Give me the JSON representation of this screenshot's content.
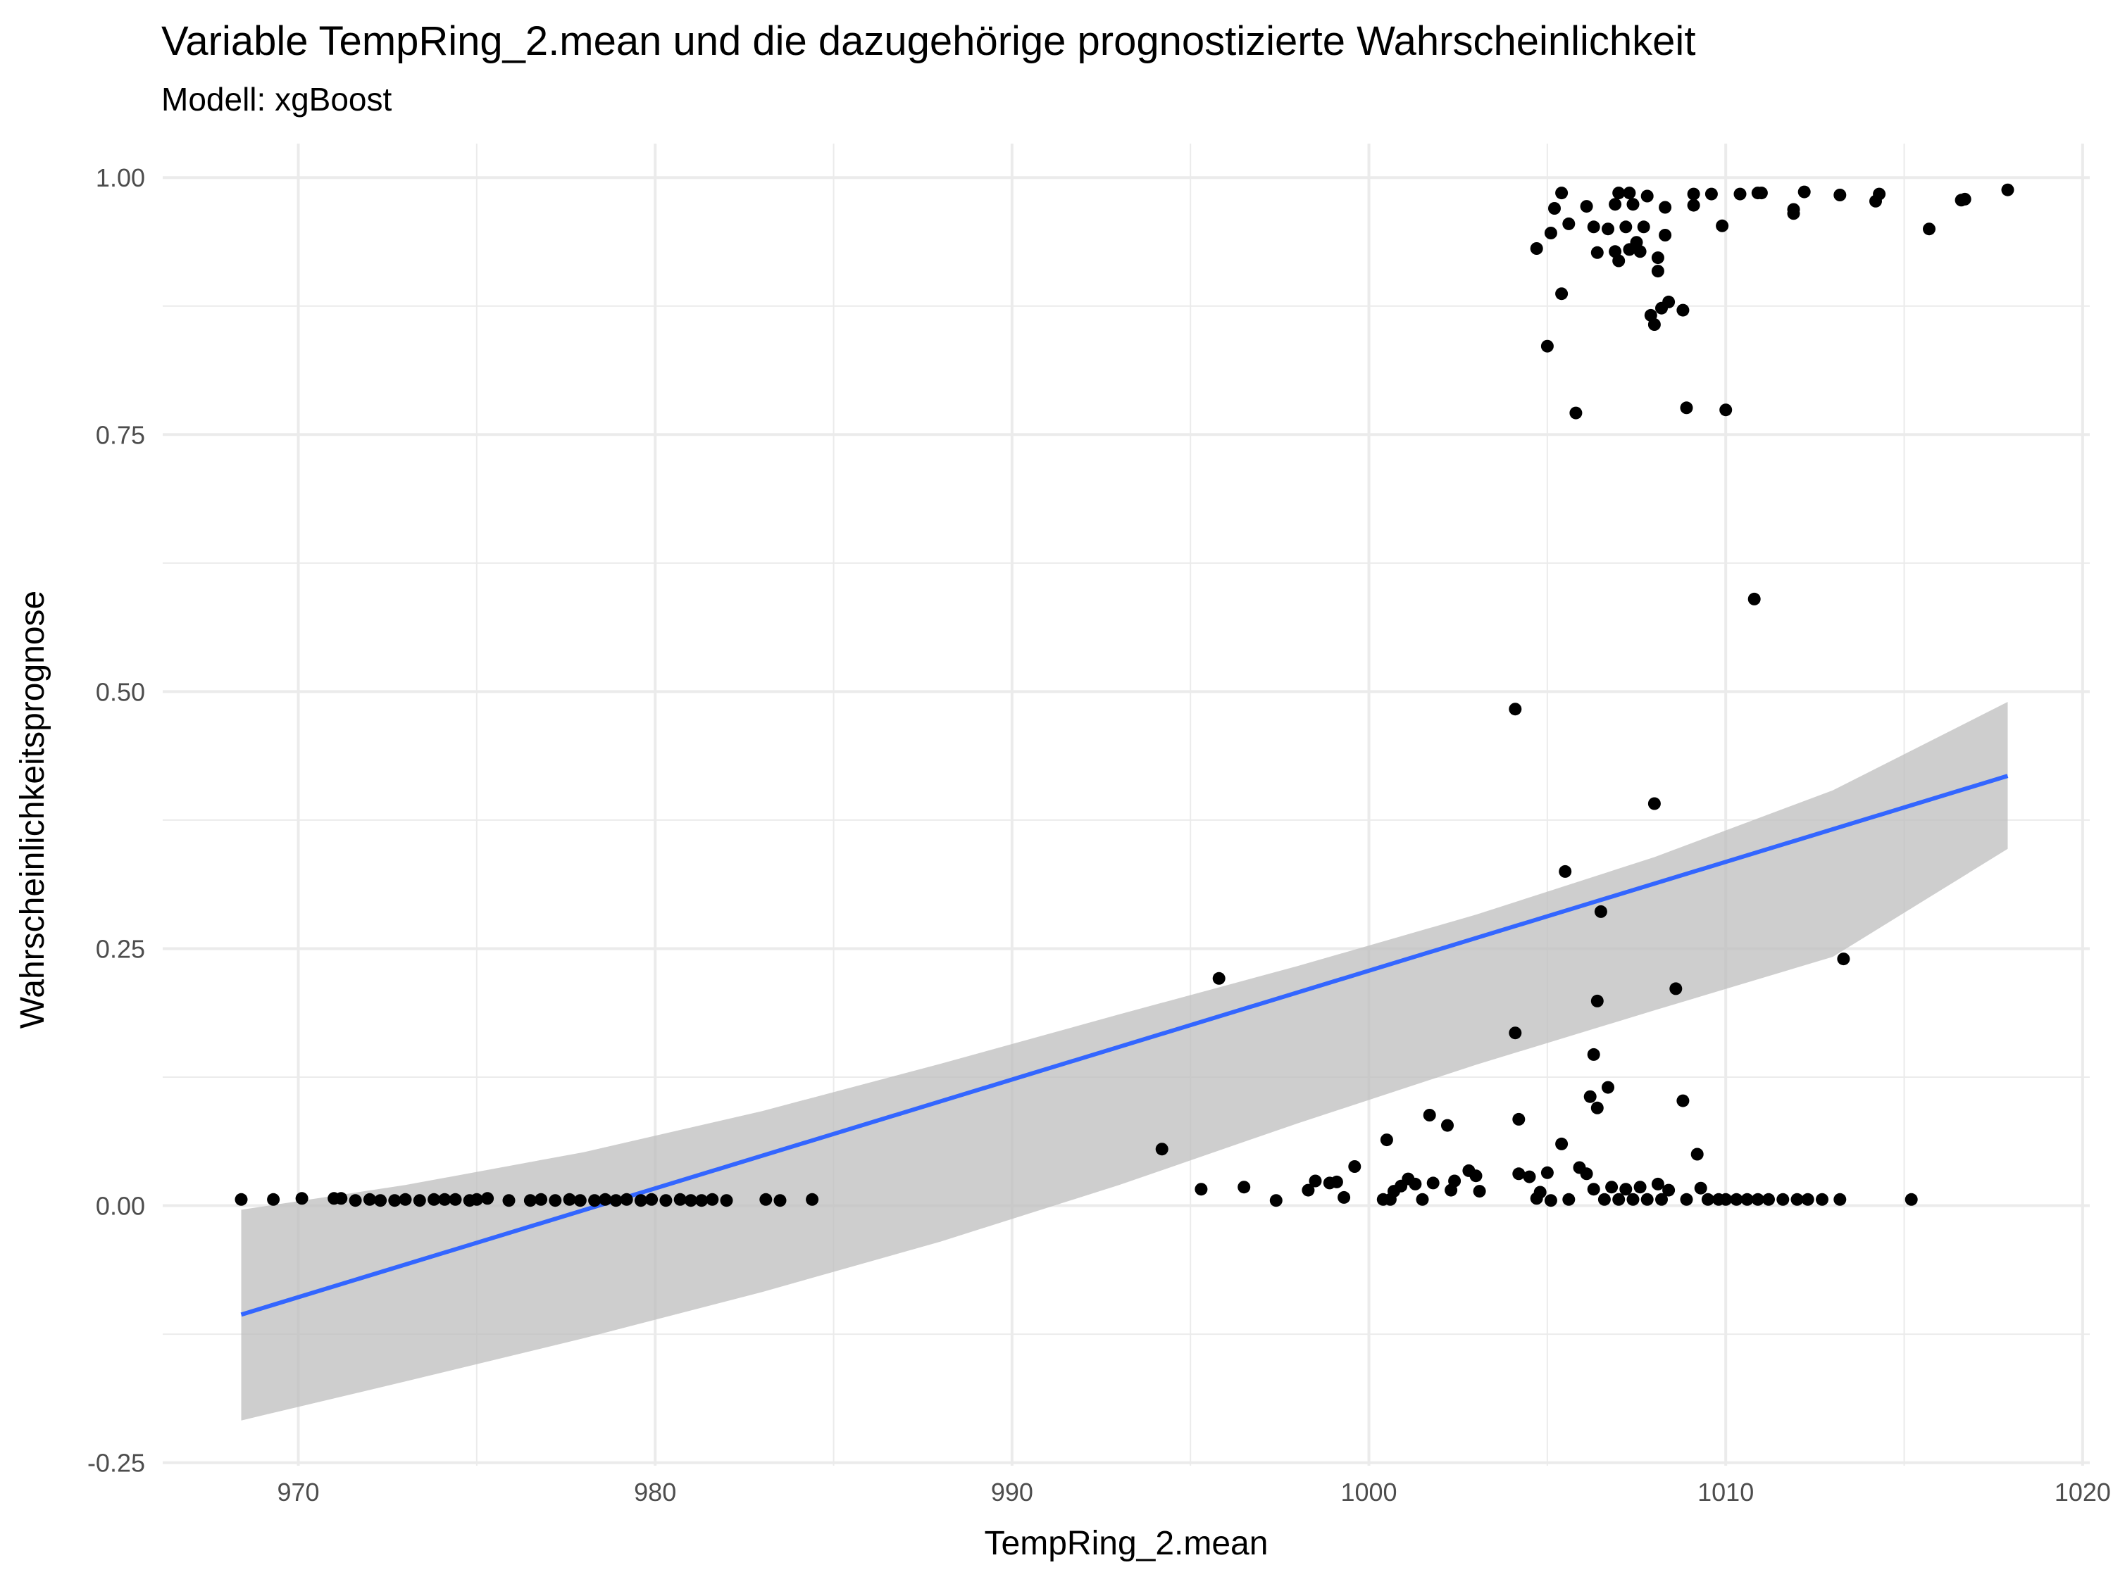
{
  "chart_data": {
    "type": "scatter",
    "title": "Variable TempRing_2.mean und die dazugehörige prognostizierte Wahrscheinlichkeit",
    "subtitle": "Modell: xgBoost",
    "xlabel": "TempRing_2.mean",
    "ylabel": "Wahrscheinlichkeitsprognose",
    "xlim": [
      966.2,
      1020.2
    ],
    "ylim": [
      -0.253,
      1.033
    ],
    "x_ticks": [
      970,
      980,
      990,
      1000,
      1010,
      1020
    ],
    "x_tick_labels": [
      "970",
      "980",
      "990",
      "1000",
      "1010",
      "1020"
    ],
    "y_ticks": [
      -0.25,
      0,
      0.25,
      0.5,
      0.75,
      1.0
    ],
    "y_tick_labels": [
      "-0.25",
      "0.00",
      "0.25",
      "0.50",
      "0.75",
      "1.00"
    ],
    "grid": true,
    "legend": "none",
    "colors": {
      "points": "#000000",
      "trend_line": "#3366FF",
      "confidence_band": "#bebebe",
      "grid": "#ebebeb"
    },
    "series": [
      {
        "type": "scatter",
        "points": [
          [
            968.4,
            0.006
          ],
          [
            969.3,
            0.006
          ],
          [
            970.1,
            0.007
          ],
          [
            971.0,
            0.007
          ],
          [
            971.2,
            0.007
          ],
          [
            971.6,
            0.005
          ],
          [
            972.0,
            0.006
          ],
          [
            972.3,
            0.005
          ],
          [
            972.7,
            0.005
          ],
          [
            973.0,
            0.006
          ],
          [
            973.4,
            0.005
          ],
          [
            973.8,
            0.006
          ],
          [
            974.1,
            0.006
          ],
          [
            974.4,
            0.006
          ],
          [
            974.8,
            0.005
          ],
          [
            975.0,
            0.006
          ],
          [
            975.3,
            0.007
          ],
          [
            975.9,
            0.005
          ],
          [
            976.5,
            0.005
          ],
          [
            976.8,
            0.006
          ],
          [
            977.2,
            0.005
          ],
          [
            977.6,
            0.006
          ],
          [
            977.9,
            0.005
          ],
          [
            978.3,
            0.005
          ],
          [
            978.6,
            0.006
          ],
          [
            978.9,
            0.005
          ],
          [
            979.2,
            0.006
          ],
          [
            979.6,
            0.005
          ],
          [
            979.9,
            0.006
          ],
          [
            980.3,
            0.005
          ],
          [
            980.7,
            0.006
          ],
          [
            981.0,
            0.005
          ],
          [
            981.3,
            0.005
          ],
          [
            981.6,
            0.006
          ],
          [
            982.0,
            0.005
          ],
          [
            983.1,
            0.006
          ],
          [
            983.5,
            0.005
          ],
          [
            984.4,
            0.006
          ],
          [
            994.2,
            0.055
          ],
          [
            995.3,
            0.016
          ],
          [
            995.8,
            0.221
          ],
          [
            996.5,
            0.018
          ],
          [
            997.4,
            0.005
          ],
          [
            998.3,
            0.015
          ],
          [
            998.5,
            0.024
          ],
          [
            998.9,
            0.022
          ],
          [
            999.1,
            0.023
          ],
          [
            999.3,
            0.008
          ],
          [
            999.6,
            0.038
          ],
          [
            1000.4,
            0.006
          ],
          [
            1000.5,
            0.064
          ],
          [
            1000.6,
            0.006
          ],
          [
            1000.7,
            0.014
          ],
          [
            1000.9,
            0.019
          ],
          [
            1001.1,
            0.026
          ],
          [
            1001.3,
            0.021
          ],
          [
            1001.5,
            0.006
          ],
          [
            1001.7,
            0.088
          ],
          [
            1001.8,
            0.022
          ],
          [
            1002.2,
            0.078
          ],
          [
            1002.3,
            0.015
          ],
          [
            1002.4,
            0.024
          ],
          [
            1002.8,
            0.034
          ],
          [
            1003.0,
            0.029
          ],
          [
            1003.1,
            0.014
          ],
          [
            1004.1,
            0.483
          ],
          [
            1004.1,
            0.168
          ],
          [
            1004.2,
            0.084
          ],
          [
            1004.2,
            0.031
          ],
          [
            1004.5,
            0.028
          ],
          [
            1004.7,
            0.007
          ],
          [
            1004.8,
            0.013
          ],
          [
            1005.0,
            0.032
          ],
          [
            1005.1,
            0.005
          ],
          [
            1005.4,
            0.06
          ],
          [
            1005.5,
            0.325
          ],
          [
            1005.6,
            0.006
          ],
          [
            1005.9,
            0.037
          ],
          [
            1006.1,
            0.031
          ],
          [
            1006.2,
            0.106
          ],
          [
            1006.3,
            0.147
          ],
          [
            1006.3,
            0.016
          ],
          [
            1006.4,
            0.095
          ],
          [
            1006.4,
            0.199
          ],
          [
            1006.5,
            0.286
          ],
          [
            1006.6,
            0.006
          ],
          [
            1006.7,
            0.115
          ],
          [
            1006.8,
            0.018
          ],
          [
            1007.0,
            0.006
          ],
          [
            1007.2,
            0.016
          ],
          [
            1007.4,
            0.006
          ],
          [
            1007.6,
            0.018
          ],
          [
            1007.8,
            0.006
          ],
          [
            1008.0,
            0.391
          ],
          [
            1008.1,
            0.021
          ],
          [
            1008.2,
            0.006
          ],
          [
            1008.4,
            0.015
          ],
          [
            1008.6,
            0.211
          ],
          [
            1008.8,
            0.102
          ],
          [
            1008.9,
            0.006
          ],
          [
            1009.2,
            0.05
          ],
          [
            1009.3,
            0.017
          ],
          [
            1009.5,
            0.006
          ],
          [
            1009.8,
            0.006
          ],
          [
            1010.0,
            0.006
          ],
          [
            1010.3,
            0.006
          ],
          [
            1010.6,
            0.006
          ],
          [
            1010.9,
            0.006
          ],
          [
            1011.2,
            0.006
          ],
          [
            1011.6,
            0.006
          ],
          [
            1012.0,
            0.006
          ],
          [
            1012.3,
            0.006
          ],
          [
            1012.7,
            0.006
          ],
          [
            1013.2,
            0.006
          ],
          [
            1015.2,
            0.006
          ],
          [
            1004.7,
            0.931
          ],
          [
            1005.0,
            0.836
          ],
          [
            1005.1,
            0.946
          ],
          [
            1005.2,
            0.97
          ],
          [
            1005.4,
            0.985
          ],
          [
            1005.4,
            0.887
          ],
          [
            1005.6,
            0.955
          ],
          [
            1005.8,
            0.771
          ],
          [
            1006.1,
            0.972
          ],
          [
            1006.3,
            0.952
          ],
          [
            1006.4,
            0.927
          ],
          [
            1006.7,
            0.95
          ],
          [
            1006.9,
            0.974
          ],
          [
            1006.9,
            0.928
          ],
          [
            1007.0,
            0.919
          ],
          [
            1007.0,
            0.985
          ],
          [
            1007.2,
            0.952
          ],
          [
            1007.3,
            0.985
          ],
          [
            1007.3,
            0.93
          ],
          [
            1007.4,
            0.974
          ],
          [
            1007.5,
            0.937
          ],
          [
            1007.6,
            0.928
          ],
          [
            1007.7,
            0.952
          ],
          [
            1007.8,
            0.982
          ],
          [
            1007.9,
            0.866
          ],
          [
            1008.0,
            0.857
          ],
          [
            1008.1,
            0.922
          ],
          [
            1008.1,
            0.909
          ],
          [
            1008.2,
            0.873
          ],
          [
            1008.3,
            0.971
          ],
          [
            1008.3,
            0.944
          ],
          [
            1008.4,
            0.879
          ],
          [
            1008.8,
            0.871
          ],
          [
            1008.9,
            0.776
          ],
          [
            1009.1,
            0.973
          ],
          [
            1009.1,
            0.984
          ],
          [
            1009.6,
            0.984
          ],
          [
            1009.9,
            0.953
          ],
          [
            1010.0,
            0.774
          ],
          [
            1010.4,
            0.984
          ],
          [
            1010.8,
            0.59
          ],
          [
            1010.9,
            0.985
          ],
          [
            1011.0,
            0.985
          ],
          [
            1011.9,
            0.965
          ],
          [
            1011.9,
            0.969
          ],
          [
            1012.2,
            0.986
          ],
          [
            1013.2,
            0.983
          ],
          [
            1013.3,
            0.24
          ],
          [
            1014.2,
            0.977
          ],
          [
            1014.3,
            0.984
          ],
          [
            1015.7,
            0.95
          ],
          [
            1016.6,
            0.978
          ],
          [
            1016.7,
            0.979
          ],
          [
            1017.9,
            0.988
          ]
        ]
      },
      {
        "type": "line",
        "x": [
          968.4,
          1017.9
        ],
        "y": [
          -0.106,
          0.418
        ]
      },
      {
        "type": "area",
        "x": [
          968.4,
          973.0,
          978.0,
          983.0,
          988.0,
          993.0,
          998.0,
          1003.0,
          1008.0,
          1013.0,
          1017.9
        ],
        "lower": [
          -0.209,
          -0.171,
          -0.129,
          -0.084,
          -0.035,
          0.02,
          0.08,
          0.137,
          0.19,
          0.242,
          0.347
        ],
        "upper": [
          -0.004,
          0.02,
          0.052,
          0.092,
          0.138,
          0.186,
          0.233,
          0.283,
          0.339,
          0.404,
          0.49
        ]
      }
    ]
  }
}
